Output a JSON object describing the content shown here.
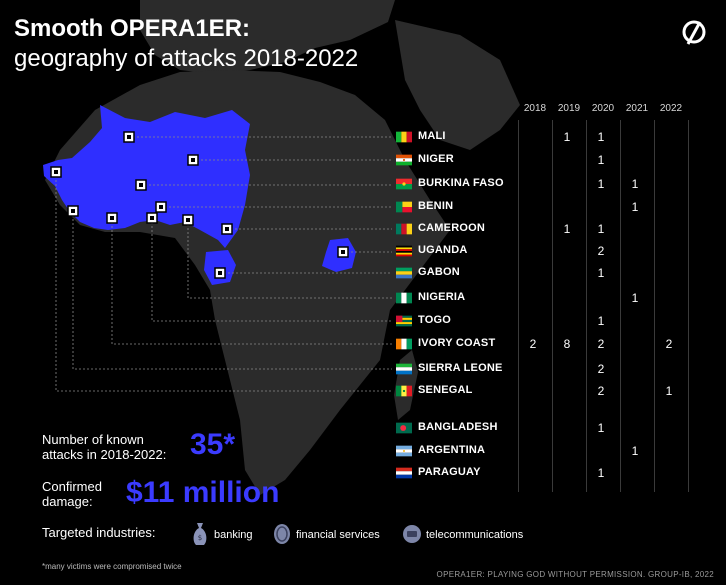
{
  "title": {
    "line1": "Smooth OPERA1ER:",
    "line2": "geography of attacks 2018-2022"
  },
  "years": [
    "2018",
    "2019",
    "2020",
    "2021",
    "2022"
  ],
  "countries": [
    {
      "name": "MALI",
      "values": [
        "",
        "1",
        "1",
        "",
        ""
      ]
    },
    {
      "name": "NIGER",
      "values": [
        "",
        "",
        "1",
        "",
        ""
      ]
    },
    {
      "name": "BURKINA FASO",
      "values": [
        "",
        "",
        "1",
        "1",
        ""
      ]
    },
    {
      "name": "BENIN",
      "values": [
        "",
        "",
        "",
        "1",
        ""
      ]
    },
    {
      "name": "CAMEROON",
      "values": [
        "",
        "1",
        "1",
        "",
        ""
      ]
    },
    {
      "name": "UGANDA",
      "values": [
        "",
        "",
        "2",
        "",
        ""
      ]
    },
    {
      "name": "GABON",
      "values": [
        "",
        "",
        "1",
        "",
        ""
      ]
    },
    {
      "name": "NIGERIA",
      "values": [
        "",
        "",
        "",
        "1",
        ""
      ]
    },
    {
      "name": "TOGO",
      "values": [
        "",
        "",
        "1",
        "",
        ""
      ]
    },
    {
      "name": "IVORY COAST",
      "values": [
        "2",
        "8",
        "2",
        "",
        "2"
      ]
    },
    {
      "name": "SIERRA LEONE",
      "values": [
        "",
        "",
        "2",
        "",
        ""
      ]
    },
    {
      "name": "SENEGAL",
      "values": [
        "",
        "",
        "2",
        "",
        "1"
      ]
    },
    {
      "name": "BANGLADESH",
      "values": [
        "",
        "",
        "1",
        "",
        ""
      ]
    },
    {
      "name": "ARGENTINA",
      "values": [
        "",
        "",
        "",
        "1",
        ""
      ]
    },
    {
      "name": "PARAGUAY",
      "values": [
        "",
        "",
        "1",
        "",
        ""
      ]
    }
  ],
  "stats": {
    "attacks_label": "Number of known attacks in 2018-2022:",
    "attacks_value": "35*",
    "damage_label": "Confirmed damage:",
    "damage_value": "$11 million"
  },
  "industries": {
    "label": "Targeted industries:",
    "items": [
      {
        "name": "banking",
        "icon": "money-bag-icon"
      },
      {
        "name": "financial services",
        "icon": "coin-icon"
      },
      {
        "name": "telecommunications",
        "icon": "phone-icon"
      }
    ]
  },
  "footnote": "*many victims were compromised twice",
  "credit": "OPERA1ER: PLAYING GOD WITHOUT PERMISSION. GROUP-IB, 2022",
  "colors": {
    "accent": "#2f2fff",
    "land": "#2c2c2c",
    "background": "#000000"
  }
}
